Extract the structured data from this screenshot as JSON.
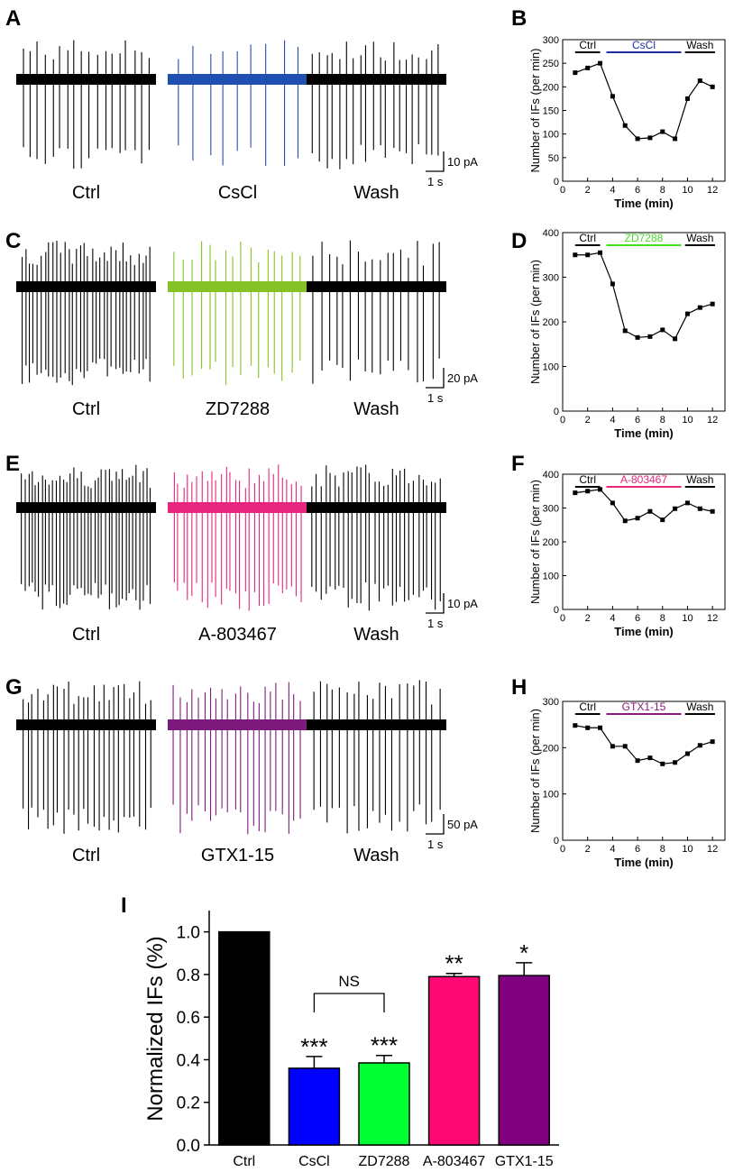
{
  "panel_letters": [
    "A",
    "B",
    "C",
    "D",
    "E",
    "F",
    "G",
    "H",
    "I"
  ],
  "trace_rows": [
    {
      "letter": "A",
      "colors": [
        "#000000",
        "#1f4fb0",
        "#000000"
      ],
      "labels": [
        "Ctrl",
        "CsCl",
        "Wash"
      ],
      "scale_current": "10 pA",
      "scale_time": "1 s",
      "spikes": [
        18,
        9,
        20
      ]
    },
    {
      "letter": "C",
      "colors": [
        "#000000",
        "#84c225",
        "#000000"
      ],
      "labels": [
        "Ctrl",
        "ZD7288",
        "Wash"
      ],
      "scale_current": "20 pA",
      "scale_time": "1 s",
      "spikes": [
        34,
        16,
        18
      ]
    },
    {
      "letter": "E",
      "colors": [
        "#000000",
        "#e6267c",
        "#000000"
      ],
      "labels": [
        "Ctrl",
        "A-803467",
        "Wash"
      ],
      "scale_current": "10 pA",
      "scale_time": "1 s",
      "spikes": [
        38,
        28,
        30
      ]
    },
    {
      "letter": "G",
      "colors": [
        "#000000",
        "#7d1a7d",
        "#000000"
      ],
      "labels": [
        "Ctrl",
        "GTX1-15",
        "Wash"
      ],
      "scale_current": "50 pA",
      "scale_time": "1 s",
      "spikes": [
        26,
        22,
        20
      ]
    }
  ],
  "chart_data": [
    {
      "panel": "B",
      "type": "line",
      "ylabel": "Number of IFs (per min)",
      "xlabel": "Time (min)",
      "xlim": [
        0,
        13
      ],
      "ylim": [
        0,
        300
      ],
      "xticks": [
        0,
        2,
        4,
        6,
        8,
        10,
        12
      ],
      "yticks": [
        0,
        50,
        100,
        150,
        200,
        250,
        300
      ],
      "x": [
        1,
        2,
        3,
        4,
        5,
        6,
        7,
        8,
        9,
        10,
        11,
        12
      ],
      "y": [
        230,
        240,
        250,
        180,
        118,
        90,
        92,
        105,
        90,
        175,
        213,
        200
      ],
      "bars": [
        {
          "label": "Ctrl",
          "x": [
            1,
            3
          ],
          "color": "#000000"
        },
        {
          "label": "CsCl",
          "x": [
            3.5,
            9.5
          ],
          "color": "#1f2fa0"
        },
        {
          "label": "Wash",
          "x": [
            9.8,
            12.2
          ],
          "color": "#000000"
        }
      ]
    },
    {
      "panel": "D",
      "type": "line",
      "ylabel": "Number of IFs (per min)",
      "xlabel": "Time (min)",
      "xlim": [
        0,
        13
      ],
      "ylim": [
        0,
        400
      ],
      "xticks": [
        0,
        2,
        4,
        6,
        8,
        10,
        12
      ],
      "yticks": [
        0,
        100,
        200,
        300,
        400
      ],
      "x": [
        1,
        2,
        3,
        4,
        5,
        6,
        7,
        8,
        9,
        10,
        11,
        12
      ],
      "y": [
        350,
        350,
        355,
        285,
        180,
        165,
        167,
        182,
        162,
        218,
        232,
        240
      ],
      "bars": [
        {
          "label": "Ctrl",
          "x": [
            1,
            3
          ],
          "color": "#000000"
        },
        {
          "label": "ZD7288",
          "x": [
            3.5,
            9.5
          ],
          "color": "#44dd22"
        },
        {
          "label": "Wash",
          "x": [
            9.8,
            12.2
          ],
          "color": "#000000"
        }
      ]
    },
    {
      "panel": "F",
      "type": "line",
      "ylabel": "Number of IFs (per min)",
      "xlabel": "Time (min)",
      "xlim": [
        0,
        13
      ],
      "ylim": [
        0,
        400
      ],
      "xticks": [
        0,
        2,
        4,
        6,
        8,
        10,
        12
      ],
      "yticks": [
        0,
        100,
        200,
        300,
        400
      ],
      "x": [
        1,
        2,
        3,
        4,
        5,
        6,
        7,
        8,
        9,
        10,
        11,
        12
      ],
      "y": [
        345,
        350,
        355,
        315,
        262,
        270,
        290,
        265,
        298,
        315,
        298,
        290
      ],
      "bars": [
        {
          "label": "Ctrl",
          "x": [
            1,
            3
          ],
          "color": "#000000"
        },
        {
          "label": "A-803467",
          "x": [
            3.5,
            9.5
          ],
          "color": "#e6267c"
        },
        {
          "label": "Wash",
          "x": [
            9.8,
            12.2
          ],
          "color": "#000000"
        }
      ]
    },
    {
      "panel": "H",
      "type": "line",
      "ylabel": "Number of IFs (per min)",
      "xlabel": "Time (min)",
      "xlim": [
        0,
        13
      ],
      "ylim": [
        0,
        300
      ],
      "xticks": [
        0,
        2,
        4,
        6,
        8,
        10,
        12
      ],
      "yticks": [
        0,
        100,
        200,
        300
      ],
      "x": [
        1,
        2,
        3,
        4,
        5,
        6,
        7,
        8,
        9,
        10,
        11,
        12
      ],
      "y": [
        248,
        243,
        243,
        203,
        203,
        172,
        178,
        165,
        168,
        187,
        205,
        213
      ],
      "bars": [
        {
          "label": "Ctrl",
          "x": [
            1,
            3
          ],
          "color": "#000000"
        },
        {
          "label": "GTX1-15",
          "x": [
            3.5,
            9.5
          ],
          "color": "#8a1a7e"
        },
        {
          "label": "Wash",
          "x": [
            9.8,
            12.2
          ],
          "color": "#000000"
        }
      ]
    },
    {
      "panel": "I",
      "type": "bar",
      "ylabel": "Normalized IFs (%)",
      "xlabel": "",
      "ylim": [
        0,
        1.1
      ],
      "yticks": [
        "0.0",
        "0.2",
        "0.4",
        "0.6",
        "0.8",
        "1.0"
      ],
      "categories": [
        "Ctrl",
        "CsCl",
        "ZD7288",
        "A-803467",
        "GTX1-15"
      ],
      "values": [
        1.0,
        0.36,
        0.385,
        0.79,
        0.795
      ],
      "errors": [
        0,
        0.055,
        0.035,
        0.015,
        0.06
      ],
      "colors": [
        "#000000",
        "#0000ff",
        "#00ff33",
        "#ff0a74",
        "#800080"
      ],
      "significance": [
        "",
        "***",
        "***",
        "**",
        "*"
      ],
      "comparison": {
        "label": "NS",
        "between": [
          1,
          2
        ]
      }
    }
  ]
}
